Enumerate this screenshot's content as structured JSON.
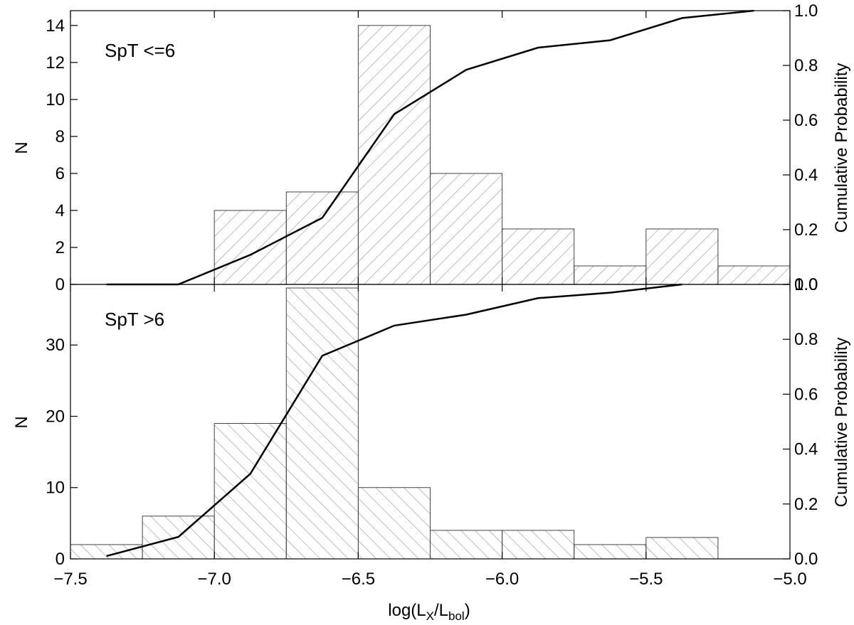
{
  "chart_data": [
    {
      "type": "bar",
      "annotation": "SpT <=6",
      "ylabel": "N",
      "y2label": "Cumulative Probability",
      "xlim": [
        -7.5,
        -5.0
      ],
      "ylim": [
        0,
        14.8
      ],
      "y2lim": [
        0,
        1.0
      ],
      "yticks": [
        0,
        2,
        4,
        6,
        8,
        10,
        12,
        14
      ],
      "y2ticks": [
        "0.0",
        "0.2",
        "0.4",
        "0.6",
        "0.8",
        "1.0"
      ],
      "bin_edges": [
        -7.0,
        -6.75,
        -6.5,
        -6.25,
        -6.0,
        -5.75,
        -5.5,
        -5.25,
        -5.0
      ],
      "values": [
        4,
        5,
        14,
        6,
        3,
        1,
        3,
        1
      ],
      "hatch": "forward",
      "cumulative": {
        "x": [
          -7.375,
          -7.125,
          -6.875,
          -6.625,
          -6.375,
          -6.125,
          -5.875,
          -5.625,
          -5.375,
          -5.125
        ],
        "y": [
          0.0,
          0.0,
          0.108,
          0.243,
          0.622,
          0.784,
          0.865,
          0.892,
          0.973,
          1.0
        ]
      }
    },
    {
      "type": "bar",
      "annotation": "SpT >6",
      "ylabel": "N",
      "y2label": "Cumulative Probability",
      "xlabel": "log(L",
      "xlabel_sub1": "X",
      "xlabel_mid": "/L",
      "xlabel_sub2": "bol",
      "xlabel_end": ")",
      "xlim": [
        -7.5,
        -5.0
      ],
      "ylim": [
        0,
        38.5
      ],
      "y2lim": [
        0,
        1.0
      ],
      "yticks": [
        0,
        10,
        20,
        30
      ],
      "y2ticks": [
        "0.0",
        "0.2",
        "0.4",
        "0.6",
        "0.8",
        "1.0"
      ],
      "xticks": [
        "-7.5",
        "-7.0",
        "-6.5",
        "-6.0",
        "-5.5",
        "-5.0"
      ],
      "bin_edges": [
        -7.5,
        -7.25,
        -7.0,
        -6.75,
        -6.5,
        -6.25,
        -6.0,
        -5.75,
        -5.5,
        -5.25
      ],
      "values": [
        2,
        6,
        19,
        38,
        10,
        4,
        4,
        2,
        3
      ],
      "hatch": "backward",
      "cumulative": {
        "x": [
          -7.375,
          -7.125,
          -6.875,
          -6.625,
          -6.375,
          -6.125,
          -5.875,
          -5.625,
          -5.375
        ],
        "y": [
          0.01,
          0.08,
          0.31,
          0.74,
          0.85,
          0.89,
          0.95,
          0.97,
          1.0
        ]
      }
    }
  ]
}
